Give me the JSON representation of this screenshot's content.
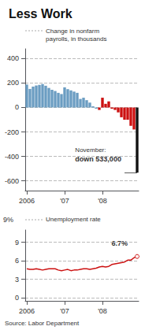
{
  "chart_data": [
    {
      "type": "bar",
      "title": "Less Work",
      "ylabel": "Change in nonfarm\npayrolls, in thousands",
      "categories": [
        "2006",
        null,
        null,
        null,
        null,
        null,
        null,
        null,
        null,
        null,
        null,
        null,
        "'07",
        null,
        null,
        null,
        null,
        null,
        null,
        null,
        null,
        null,
        null,
        null,
        "'08",
        null,
        null,
        null,
        null,
        null,
        null,
        null,
        null,
        null,
        null,
        null
      ],
      "values": [
        188,
        152,
        171,
        180,
        185,
        192,
        178,
        160,
        145,
        135,
        120,
        110,
        165,
        150,
        140,
        130,
        120,
        70,
        80,
        60,
        40,
        10,
        -10,
        -20,
        80,
        30,
        50,
        -10,
        -20,
        -40,
        -80,
        -100,
        -100,
        -150,
        -180,
        -533
      ],
      "colors": [
        "#6b9dc2",
        "#6b9dc2",
        "#6b9dc2",
        "#6b9dc2",
        "#6b9dc2",
        "#6b9dc2",
        "#6b9dc2",
        "#6b9dc2",
        "#6b9dc2",
        "#6b9dc2",
        "#6b9dc2",
        "#6b9dc2",
        "#6b9dc2",
        "#6b9dc2",
        "#6b9dc2",
        "#6b9dc2",
        "#6b9dc2",
        "#6b9dc2",
        "#6b9dc2",
        "#6b9dc2",
        "#6b9dc2",
        "#6b9dc2",
        "#6b9dc2",
        "#cc1111",
        "#cc1111",
        "#cc1111",
        "#cc1111",
        "#cc1111",
        "#cc1111",
        "#cc1111",
        "#cc1111",
        "#cc1111",
        "#cc1111",
        "#cc1111",
        "#cc1111",
        "#111111"
      ],
      "ylim": [
        -680,
        480
      ],
      "yticks": [
        400,
        200,
        0,
        -200,
        -400,
        -600
      ],
      "grid": true,
      "annotations": [
        "November:",
        "down 533,000"
      ]
    },
    {
      "type": "line",
      "ylabel": "Unemployment rate",
      "categories": [
        "2006",
        null,
        null,
        null,
        null,
        null,
        null,
        null,
        null,
        null,
        null,
        null,
        "'07",
        null,
        null,
        null,
        null,
        null,
        null,
        null,
        null,
        null,
        null,
        null,
        "'08",
        null,
        null,
        null,
        null,
        null,
        null,
        null,
        null,
        null,
        null,
        null
      ],
      "values": [
        4.7,
        4.6,
        4.6,
        4.7,
        4.6,
        4.5,
        4.6,
        4.7,
        4.7,
        4.7,
        4.5,
        4.4,
        4.5,
        4.6,
        4.4,
        4.5,
        4.5,
        4.6,
        4.7,
        4.7,
        4.6,
        4.7,
        4.8,
        5.0,
        5.1,
        5.0,
        5.1,
        5.4,
        5.5,
        5.6,
        5.7,
        5.8,
        6.1,
        6.1,
        6.5,
        6.7
      ],
      "color": "#cc1111",
      "ylim": [
        -0.5,
        11.0
      ],
      "yticks": [
        0,
        3,
        6,
        9
      ],
      "grid": true,
      "annotations": [
        "9%",
        "6.7%",
        "Source: Labor Department"
      ]
    }
  ]
}
